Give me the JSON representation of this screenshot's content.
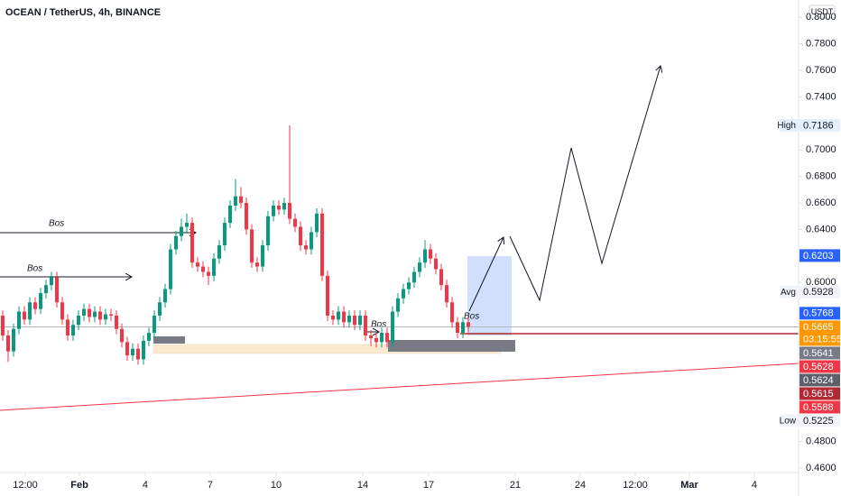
{
  "chart_data": {
    "type": "candlestick",
    "title": "OCEAN / TetherUS, 4h, BINANCE",
    "currency": "USDT",
    "up_color": "#089981",
    "down_color": "#f23645",
    "open": [
      0.575,
      0.56,
      0.548,
      0.565,
      0.578,
      0.572,
      0.585,
      0.58,
      0.592,
      0.598,
      0.604,
      0.585,
      0.572,
      0.56,
      0.568,
      0.575,
      0.58,
      0.574,
      0.578,
      0.572,
      0.576,
      0.575,
      0.565,
      0.555,
      0.545,
      0.55,
      0.542,
      0.556,
      0.562,
      0.575,
      0.585,
      0.595,
      0.625,
      0.635,
      0.642,
      0.645,
      0.615,
      0.612,
      0.608,
      0.605,
      0.618,
      0.628,
      0.645,
      0.658,
      0.665,
      0.66,
      0.64,
      0.615,
      0.612,
      0.628,
      0.65,
      0.658,
      0.655,
      0.66,
      0.648,
      0.642,
      0.628,
      0.625,
      0.638,
      0.652,
      0.605,
      0.575,
      0.572,
      0.578,
      0.57,
      0.575,
      0.568,
      0.575,
      0.56,
      0.558,
      0.555,
      0.562,
      0.555,
      0.578,
      0.588,
      0.595,
      0.6,
      0.608,
      0.615,
      0.625,
      0.618,
      0.61,
      0.598,
      0.585,
      0.57,
      0.562,
      0.57
    ],
    "high": [
      0.579,
      0.564,
      0.569,
      0.582,
      0.582,
      0.589,
      0.589,
      0.596,
      0.602,
      0.608,
      0.608,
      0.589,
      0.576,
      0.572,
      0.579,
      0.584,
      0.584,
      0.582,
      0.582,
      0.58,
      0.58,
      0.579,
      0.569,
      0.559,
      0.554,
      0.554,
      0.56,
      0.566,
      0.579,
      0.589,
      0.599,
      0.629,
      0.639,
      0.648,
      0.652,
      0.649,
      0.619,
      0.616,
      0.612,
      0.622,
      0.632,
      0.649,
      0.662,
      0.678,
      0.672,
      0.664,
      0.644,
      0.619,
      0.632,
      0.654,
      0.662,
      0.662,
      0.664,
      0.7186,
      0.652,
      0.646,
      0.632,
      0.642,
      0.656,
      0.656,
      0.609,
      0.579,
      0.582,
      0.582,
      0.579,
      0.579,
      0.579,
      0.579,
      0.564,
      0.562,
      0.566,
      0.566,
      0.582,
      0.592,
      0.599,
      0.604,
      0.612,
      0.619,
      0.632,
      0.629,
      0.622,
      0.614,
      0.602,
      0.589,
      0.574,
      0.574,
      0.574
    ],
    "low": [
      0.556,
      0.54,
      0.544,
      0.561,
      0.568,
      0.568,
      0.576,
      0.576,
      0.588,
      0.594,
      0.581,
      0.568,
      0.556,
      0.556,
      0.564,
      0.571,
      0.57,
      0.57,
      0.568,
      0.568,
      0.571,
      0.561,
      0.551,
      0.541,
      0.541,
      0.538,
      0.538,
      0.552,
      0.558,
      0.571,
      0.581,
      0.591,
      0.621,
      0.631,
      0.638,
      0.611,
      0.608,
      0.604,
      0.598,
      0.601,
      0.614,
      0.624,
      0.641,
      0.654,
      0.656,
      0.636,
      0.611,
      0.608,
      0.608,
      0.624,
      0.646,
      0.651,
      0.651,
      0.644,
      0.638,
      0.624,
      0.621,
      0.621,
      0.634,
      0.601,
      0.571,
      0.568,
      0.568,
      0.566,
      0.566,
      0.564,
      0.564,
      0.556,
      0.552,
      0.551,
      0.551,
      0.551,
      0.551,
      0.574,
      0.584,
      0.591,
      0.596,
      0.604,
      0.611,
      0.614,
      0.606,
      0.594,
      0.581,
      0.566,
      0.558,
      0.558,
      0.5624
    ],
    "close": [
      0.56,
      0.548,
      0.565,
      0.578,
      0.572,
      0.585,
      0.58,
      0.592,
      0.598,
      0.604,
      0.585,
      0.572,
      0.56,
      0.568,
      0.575,
      0.58,
      0.574,
      0.578,
      0.572,
      0.576,
      0.575,
      0.565,
      0.555,
      0.545,
      0.55,
      0.542,
      0.556,
      0.562,
      0.575,
      0.585,
      0.595,
      0.625,
      0.635,
      0.642,
      0.645,
      0.615,
      0.612,
      0.608,
      0.605,
      0.618,
      0.628,
      0.645,
      0.658,
      0.665,
      0.66,
      0.64,
      0.615,
      0.612,
      0.628,
      0.65,
      0.658,
      0.655,
      0.66,
      0.648,
      0.642,
      0.628,
      0.625,
      0.638,
      0.652,
      0.605,
      0.575,
      0.572,
      0.578,
      0.57,
      0.575,
      0.568,
      0.575,
      0.56,
      0.558,
      0.555,
      0.562,
      0.555,
      0.578,
      0.588,
      0.595,
      0.6,
      0.608,
      0.615,
      0.625,
      0.618,
      0.61,
      0.598,
      0.585,
      0.57,
      0.562,
      0.57,
      0.5665
    ],
    "ylim": [
      0.4566,
      0.8131
    ],
    "yticks": [
      {
        "value": 0.46,
        "label": "0.4600"
      },
      {
        "value": 0.48,
        "label": "0.4800"
      },
      {
        "value": 0.6,
        "label": "0.6000"
      },
      {
        "value": 0.64,
        "label": "0.6400"
      },
      {
        "value": 0.66,
        "label": "0.6600"
      },
      {
        "value": 0.68,
        "label": "0.6800"
      },
      {
        "value": 0.7,
        "label": "0.7000"
      },
      {
        "value": 0.74,
        "label": "0.7400"
      },
      {
        "value": 0.76,
        "label": "0.7600"
      },
      {
        "value": 0.78,
        "label": "0.7800"
      },
      {
        "value": 0.8,
        "label": "0.8000"
      }
    ],
    "xlim": [
      0,
      147.5
    ],
    "xticks": [
      {
        "value": 4.67,
        "label": "12:00"
      },
      {
        "value": 14.67,
        "label": "Feb"
      },
      {
        "value": 26.83,
        "label": "4"
      },
      {
        "value": 38.83,
        "label": "7"
      },
      {
        "value": 51,
        "label": "10"
      },
      {
        "value": 67,
        "label": "14"
      },
      {
        "value": 79.17,
        "label": "17"
      },
      {
        "value": 95.17,
        "label": "21"
      },
      {
        "value": 107.17,
        "label": "24"
      },
      {
        "value": 117.33,
        "label": "12:00"
      },
      {
        "value": 127.33,
        "label": "Mar"
      },
      {
        "value": 139.33,
        "label": "4"
      }
    ],
    "price_labels": [
      {
        "name": "High",
        "value": 0.7186,
        "color": "#e3effd",
        "text_color": "#131722"
      },
      {
        "value": 0.6203,
        "color": "#2962ff",
        "text_color": "#ffffff"
      },
      {
        "name": "Avg",
        "value": 0.5928,
        "color": "#f0f3fa",
        "text_color": "#131722"
      },
      {
        "value": 0.5768,
        "color": "#2962ff",
        "text_color": "#ffffff"
      },
      {
        "value": 0.5665,
        "color": "#ff9800",
        "text_color": "#ffffff"
      },
      {
        "value": 0.5641,
        "color": "#787b86",
        "text_color": "#ffffff"
      },
      {
        "value": 0.5628,
        "color": "#f23645",
        "text_color": "#ffffff"
      },
      {
        "value": 0.5624,
        "color": "#5d606b",
        "text_color": "#ffffff"
      },
      {
        "value": 0.5615,
        "color": "#b22833",
        "text_color": "#ffffff"
      },
      {
        "value": 0.5588,
        "color": "#f23645",
        "text_color": "#ffffff"
      },
      {
        "name": "Low",
        "value": 0.5225,
        "color": "#f0f3fa",
        "text_color": "#131722"
      }
    ],
    "countdown": "03:15:55",
    "annotations": [
      "Bos",
      "Bos",
      "Bos",
      "Bos"
    ]
  }
}
